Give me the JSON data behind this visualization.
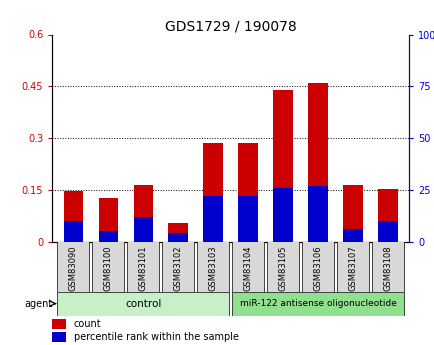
{
  "title": "GDS1729 / 190078",
  "samples": [
    "GSM83090",
    "GSM83100",
    "GSM83101",
    "GSM83102",
    "GSM83103",
    "GSM83104",
    "GSM83105",
    "GSM83106",
    "GSM83107",
    "GSM83108"
  ],
  "count_values": [
    0.145,
    0.125,
    0.165,
    0.055,
    0.285,
    0.285,
    0.44,
    0.46,
    0.165,
    0.152
  ],
  "percentile_values_pct": [
    10,
    5,
    12,
    4,
    22,
    22,
    26,
    27,
    6,
    10
  ],
  "left_ylim": [
    0,
    0.6
  ],
  "right_ylim": [
    0,
    100
  ],
  "left_yticks": [
    0,
    0.15,
    0.3,
    0.45,
    0.6
  ],
  "right_yticks": [
    0,
    25,
    50,
    75,
    100
  ],
  "left_ytick_labels": [
    "0",
    "0.15",
    "0.3",
    "0.45",
    "0.6"
  ],
  "right_ytick_labels": [
    "0",
    "25",
    "50",
    "75",
    "100%"
  ],
  "grid_lines": [
    0.15,
    0.3,
    0.45
  ],
  "bar_width": 0.55,
  "count_color": "#cc0000",
  "percentile_color": "#0000cc",
  "control_indices": [
    0,
    1,
    2,
    3,
    4
  ],
  "treatment_indices": [
    5,
    6,
    7,
    8,
    9
  ],
  "control_label": "control",
  "treatment_label": "miR-122 antisense oligonucleotide",
  "agent_label": "agent",
  "legend_count": "count",
  "legend_percentile": "percentile rank within the sample",
  "sample_box_color": "#d8d8d8",
  "control_bg": "#c8f0c8",
  "treatment_bg": "#90e090",
  "plot_bg": "#ffffff",
  "outer_bg": "#ffffff",
  "left_axis_color": "#cc0000",
  "right_axis_color": "#0000cc",
  "title_fontsize": 10,
  "tick_fontsize": 7,
  "label_fontsize": 7.5
}
